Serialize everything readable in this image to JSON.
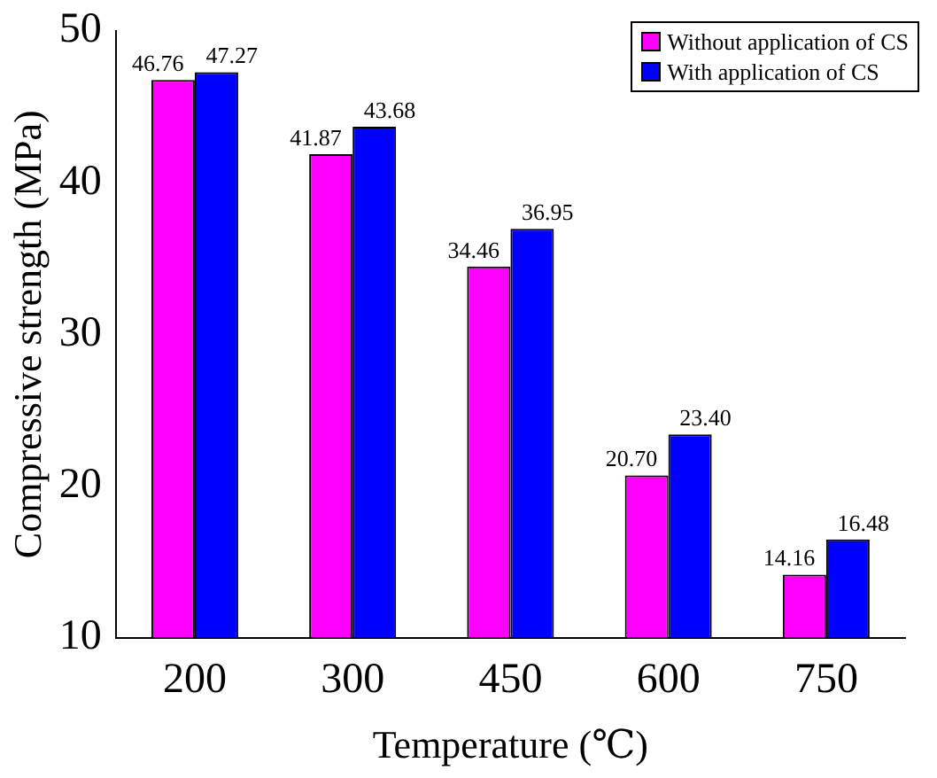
{
  "chart_data": {
    "type": "bar",
    "xlabel": "Temperature (℃)",
    "ylabel": "Compressive strength (MPa)",
    "categories": [
      "200",
      "300",
      "450",
      "600",
      "750"
    ],
    "series": [
      {
        "name": "Without application of CS",
        "color": "#ff00ff",
        "values": [
          46.76,
          41.87,
          34.46,
          20.7,
          14.16
        ],
        "value_labels": [
          "46.76",
          "41.87",
          "34.46",
          "20.70",
          "14.16"
        ]
      },
      {
        "name": "With application of CS",
        "color": "#0000ff",
        "values": [
          47.27,
          43.68,
          36.95,
          23.4,
          16.48
        ],
        "value_labels": [
          "47.27",
          "43.68",
          "36.95",
          "23.40",
          "16.48"
        ]
      }
    ],
    "ylim": [
      10,
      50
    ],
    "yticks": [
      10,
      20,
      30,
      40,
      50
    ],
    "grid": false,
    "legend": "top right"
  }
}
